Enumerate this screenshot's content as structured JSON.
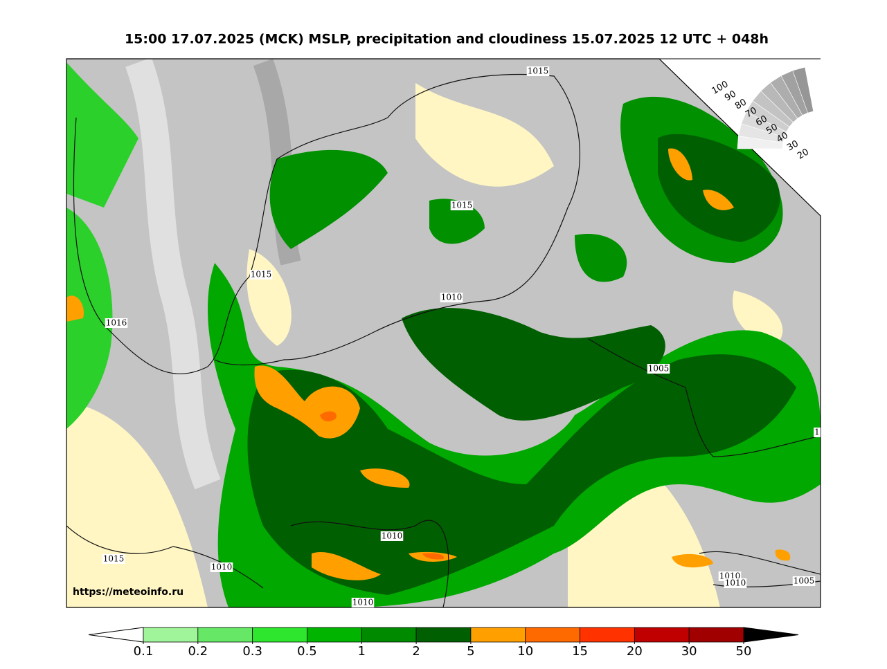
{
  "title": "15:00 17.07.2025 (MCK) MSLP, precipitation and cloudiness 15.07.2025 12 UTC + 048h",
  "source": "https://meteoinfo.ru",
  "isobar_labels": [
    "1015",
    "1015",
    "1015",
    "1016",
    "1010",
    "1005",
    "1010",
    "1015",
    "1010",
    "1010",
    "1010",
    "1010",
    "1005",
    "1"
  ],
  "cloudiness_ticks": [
    100,
    90,
    80,
    70,
    60,
    50,
    40,
    30,
    20
  ],
  "precipitation_scale": {
    "ticks": [
      0.1,
      0.2,
      0.3,
      0.5,
      1,
      2,
      5,
      10,
      15,
      20,
      30,
      50
    ],
    "colors": [
      "#a0f59a",
      "#66e866",
      "#2ee62e",
      "#00b400",
      "#008a00",
      "#005f00",
      "#ffa000",
      "#ff6a00",
      "#ff3200",
      "#c00000",
      "#a00000"
    ]
  }
}
